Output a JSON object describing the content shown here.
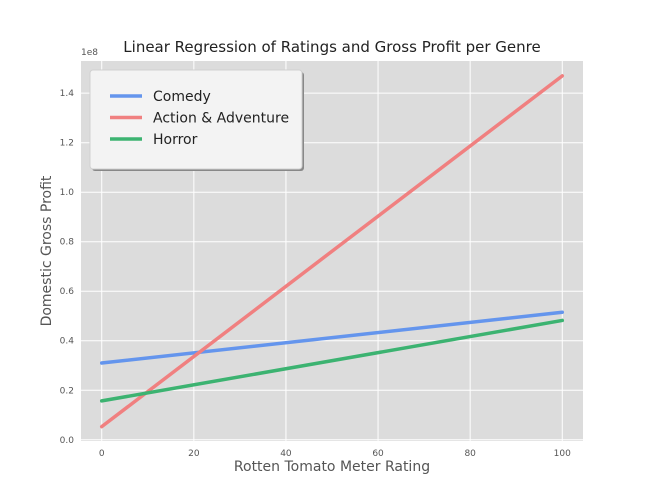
{
  "chart_data": {
    "type": "line",
    "title": "Linear Regression of Ratings and Gross Profit per Genre",
    "xlabel": "Rotten Tomato Meter Rating",
    "ylabel": "Domestic Gross Profit",
    "y_multiplier_label": "1e8",
    "xlim": [
      -4.5,
      104.5
    ],
    "ylim": [
      -0.005,
      1.53
    ],
    "x_ticks": [
      0,
      20,
      40,
      60,
      80,
      100
    ],
    "x_tick_labels": [
      "0",
      "20",
      "40",
      "60",
      "80",
      "100"
    ],
    "y_ticks": [
      0.0,
      0.2,
      0.4,
      0.6,
      0.8,
      1.0,
      1.2,
      1.4
    ],
    "y_tick_labels": [
      "0.0",
      "0.2",
      "0.4",
      "0.6",
      "0.8",
      "1.0",
      "1.2",
      "1.4"
    ],
    "grid": true,
    "legend_position": "top-left",
    "series": [
      {
        "name": "Comedy",
        "color": "#6495ED",
        "x": [
          0,
          100
        ],
        "y": [
          0.31,
          0.515
        ]
      },
      {
        "name": "Action & Adventure",
        "color": "#F08080",
        "x": [
          0,
          100
        ],
        "y": [
          0.053,
          1.47
        ]
      },
      {
        "name": "Horror",
        "color": "#3CB371",
        "x": [
          0,
          100
        ],
        "y": [
          0.157,
          0.482
        ]
      }
    ]
  }
}
